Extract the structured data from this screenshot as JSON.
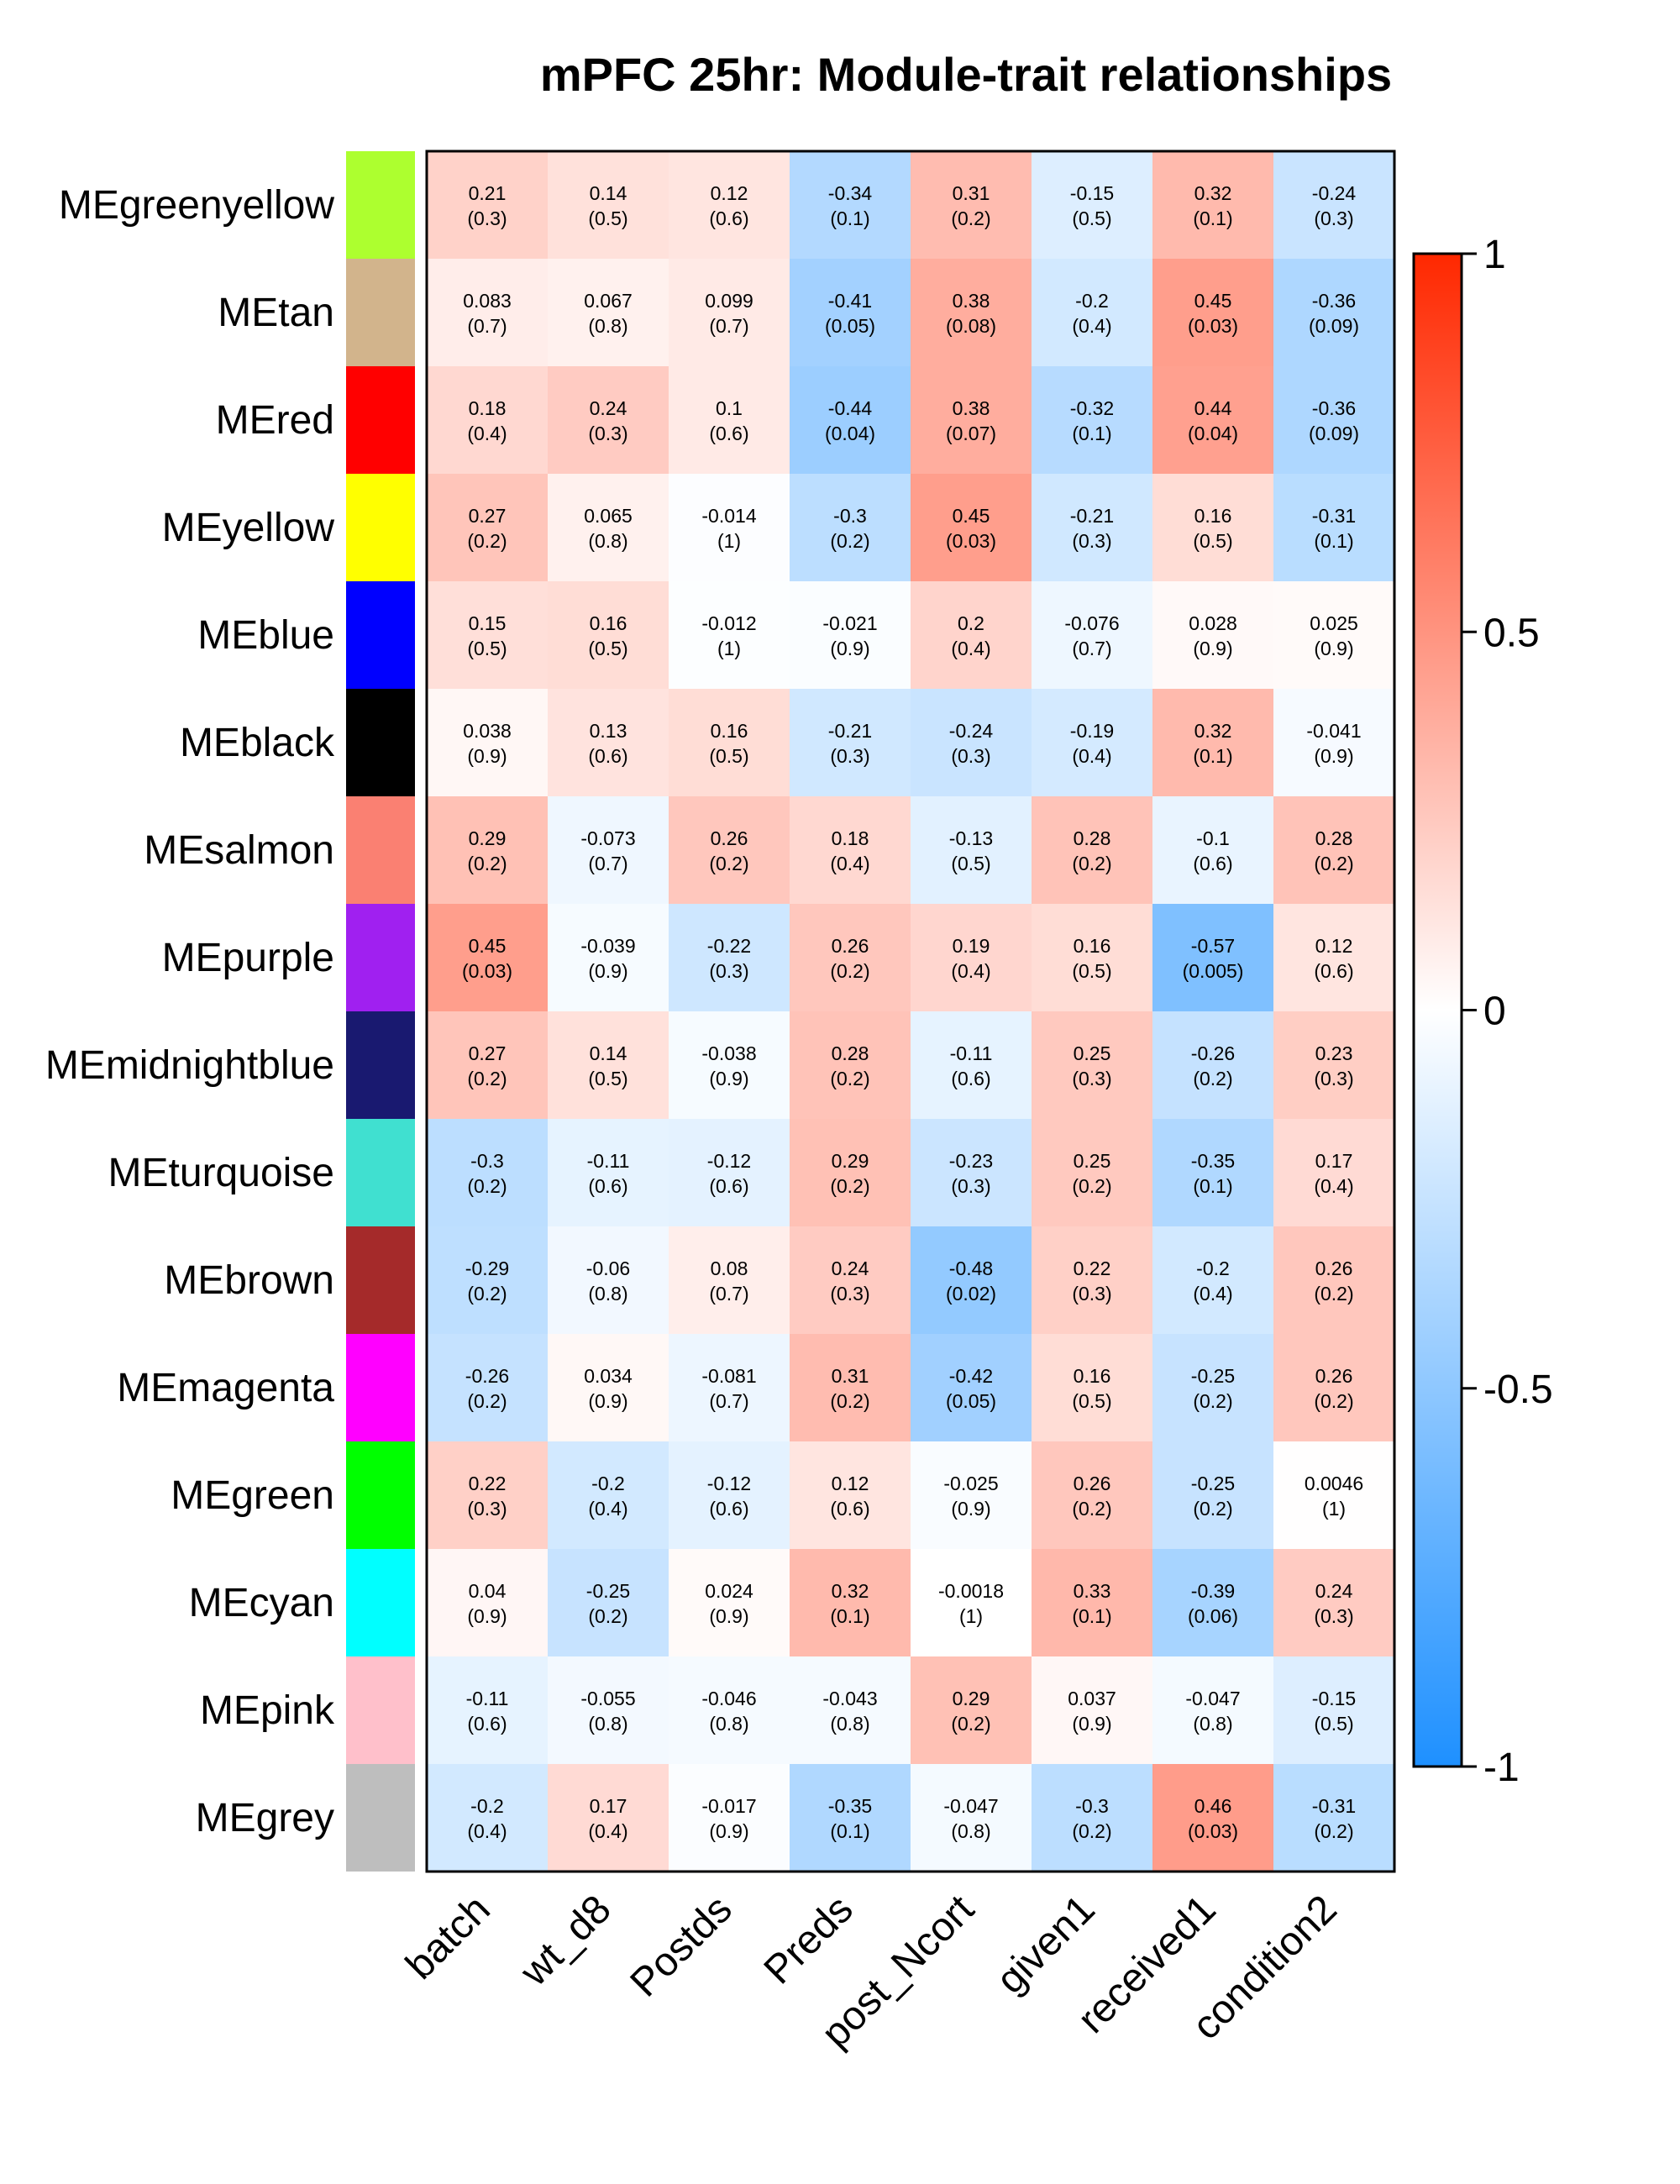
{
  "chart_data": {
    "type": "heatmap",
    "title": "mPFC 25hr: Module-trait relationships",
    "rows": [
      {
        "label": "MEgreenyellow",
        "color": "#ADFF2F"
      },
      {
        "label": "MEtan",
        "color": "#D2B48C"
      },
      {
        "label": "MEred",
        "color": "#FF0000"
      },
      {
        "label": "MEyellow",
        "color": "#FFFF00"
      },
      {
        "label": "MEblue",
        "color": "#0000FF"
      },
      {
        "label": "MEblack",
        "color": "#000000"
      },
      {
        "label": "MEsalmon",
        "color": "#FA8072"
      },
      {
        "label": "MEpurple",
        "color": "#A020F0"
      },
      {
        "label": "MEmidnightblue",
        "color": "#191970"
      },
      {
        "label": "MEturquoise",
        "color": "#40E0D0"
      },
      {
        "label": "MEbrown",
        "color": "#A52A2A"
      },
      {
        "label": "MEmagenta",
        "color": "#FF00FF"
      },
      {
        "label": "MEgreen",
        "color": "#00FF00"
      },
      {
        "label": "MEcyan",
        "color": "#00FFFF"
      },
      {
        "label": "MEpink",
        "color": "#FFC0CB"
      },
      {
        "label": "MEgrey",
        "color": "#BEBEBE"
      }
    ],
    "columns": [
      "batch",
      "wt_d8",
      "Postds",
      "Preds",
      "post_Ncort",
      "given1",
      "received1",
      "condition2"
    ],
    "cells": [
      [
        [
          "0.21",
          "(0.3)"
        ],
        [
          "0.14",
          "(0.5)"
        ],
        [
          "0.12",
          "(0.6)"
        ],
        [
          "-0.34",
          "(0.1)"
        ],
        [
          "0.31",
          "(0.2)"
        ],
        [
          "-0.15",
          "(0.5)"
        ],
        [
          "0.32",
          "(0.1)"
        ],
        [
          "-0.24",
          "(0.3)"
        ]
      ],
      [
        [
          "0.083",
          "(0.7)"
        ],
        [
          "0.067",
          "(0.8)"
        ],
        [
          "0.099",
          "(0.7)"
        ],
        [
          "-0.41",
          "(0.05)"
        ],
        [
          "0.38",
          "(0.08)"
        ],
        [
          "-0.2",
          "(0.4)"
        ],
        [
          "0.45",
          "(0.03)"
        ],
        [
          "-0.36",
          "(0.09)"
        ]
      ],
      [
        [
          "0.18",
          "(0.4)"
        ],
        [
          "0.24",
          "(0.3)"
        ],
        [
          "0.1",
          "(0.6)"
        ],
        [
          "-0.44",
          "(0.04)"
        ],
        [
          "0.38",
          "(0.07)"
        ],
        [
          "-0.32",
          "(0.1)"
        ],
        [
          "0.44",
          "(0.04)"
        ],
        [
          "-0.36",
          "(0.09)"
        ]
      ],
      [
        [
          "0.27",
          "(0.2)"
        ],
        [
          "0.065",
          "(0.8)"
        ],
        [
          "-0.014",
          "(1)"
        ],
        [
          "-0.3",
          "(0.2)"
        ],
        [
          "0.45",
          "(0.03)"
        ],
        [
          "-0.21",
          "(0.3)"
        ],
        [
          "0.16",
          "(0.5)"
        ],
        [
          "-0.31",
          "(0.1)"
        ]
      ],
      [
        [
          "0.15",
          "(0.5)"
        ],
        [
          "0.16",
          "(0.5)"
        ],
        [
          "-0.012",
          "(1)"
        ],
        [
          "-0.021",
          "(0.9)"
        ],
        [
          "0.2",
          "(0.4)"
        ],
        [
          "-0.076",
          "(0.7)"
        ],
        [
          "0.028",
          "(0.9)"
        ],
        [
          "0.025",
          "(0.9)"
        ]
      ],
      [
        [
          "0.038",
          "(0.9)"
        ],
        [
          "0.13",
          "(0.6)"
        ],
        [
          "0.16",
          "(0.5)"
        ],
        [
          "-0.21",
          "(0.3)"
        ],
        [
          "-0.24",
          "(0.3)"
        ],
        [
          "-0.19",
          "(0.4)"
        ],
        [
          "0.32",
          "(0.1)"
        ],
        [
          "-0.041",
          "(0.9)"
        ]
      ],
      [
        [
          "0.29",
          "(0.2)"
        ],
        [
          "-0.073",
          "(0.7)"
        ],
        [
          "0.26",
          "(0.2)"
        ],
        [
          "0.18",
          "(0.4)"
        ],
        [
          "-0.13",
          "(0.5)"
        ],
        [
          "0.28",
          "(0.2)"
        ],
        [
          "-0.1",
          "(0.6)"
        ],
        [
          "0.28",
          "(0.2)"
        ]
      ],
      [
        [
          "0.45",
          "(0.03)"
        ],
        [
          "-0.039",
          "(0.9)"
        ],
        [
          "-0.22",
          "(0.3)"
        ],
        [
          "0.26",
          "(0.2)"
        ],
        [
          "0.19",
          "(0.4)"
        ],
        [
          "0.16",
          "(0.5)"
        ],
        [
          "-0.57",
          "(0.005)"
        ],
        [
          "0.12",
          "(0.6)"
        ]
      ],
      [
        [
          "0.27",
          "(0.2)"
        ],
        [
          "0.14",
          "(0.5)"
        ],
        [
          "-0.038",
          "(0.9)"
        ],
        [
          "0.28",
          "(0.2)"
        ],
        [
          "-0.11",
          "(0.6)"
        ],
        [
          "0.25",
          "(0.3)"
        ],
        [
          "-0.26",
          "(0.2)"
        ],
        [
          "0.23",
          "(0.3)"
        ]
      ],
      [
        [
          "-0.3",
          "(0.2)"
        ],
        [
          "-0.11",
          "(0.6)"
        ],
        [
          "-0.12",
          "(0.6)"
        ],
        [
          "0.29",
          "(0.2)"
        ],
        [
          "-0.23",
          "(0.3)"
        ],
        [
          "0.25",
          "(0.2)"
        ],
        [
          "-0.35",
          "(0.1)"
        ],
        [
          "0.17",
          "(0.4)"
        ]
      ],
      [
        [
          "-0.29",
          "(0.2)"
        ],
        [
          "-0.06",
          "(0.8)"
        ],
        [
          "0.08",
          "(0.7)"
        ],
        [
          "0.24",
          "(0.3)"
        ],
        [
          "-0.48",
          "(0.02)"
        ],
        [
          "0.22",
          "(0.3)"
        ],
        [
          "-0.2",
          "(0.4)"
        ],
        [
          "0.26",
          "(0.2)"
        ]
      ],
      [
        [
          "-0.26",
          "(0.2)"
        ],
        [
          "0.034",
          "(0.9)"
        ],
        [
          "-0.081",
          "(0.7)"
        ],
        [
          "0.31",
          "(0.2)"
        ],
        [
          "-0.42",
          "(0.05)"
        ],
        [
          "0.16",
          "(0.5)"
        ],
        [
          "-0.25",
          "(0.2)"
        ],
        [
          "0.26",
          "(0.2)"
        ]
      ],
      [
        [
          "0.22",
          "(0.3)"
        ],
        [
          "-0.2",
          "(0.4)"
        ],
        [
          "-0.12",
          "(0.6)"
        ],
        [
          "0.12",
          "(0.6)"
        ],
        [
          "-0.025",
          "(0.9)"
        ],
        [
          "0.26",
          "(0.2)"
        ],
        [
          "-0.25",
          "(0.2)"
        ],
        [
          "0.0046",
          "(1)"
        ]
      ],
      [
        [
          "0.04",
          "(0.9)"
        ],
        [
          "-0.25",
          "(0.2)"
        ],
        [
          "0.024",
          "(0.9)"
        ],
        [
          "0.32",
          "(0.1)"
        ],
        [
          "-0.0018",
          "(1)"
        ],
        [
          "0.33",
          "(0.1)"
        ],
        [
          "-0.39",
          "(0.06)"
        ],
        [
          "0.24",
          "(0.3)"
        ]
      ],
      [
        [
          "-0.11",
          "(0.6)"
        ],
        [
          "-0.055",
          "(0.8)"
        ],
        [
          "-0.046",
          "(0.8)"
        ],
        [
          "-0.043",
          "(0.8)"
        ],
        [
          "0.29",
          "(0.2)"
        ],
        [
          "0.037",
          "(0.9)"
        ],
        [
          "-0.047",
          "(0.8)"
        ],
        [
          "-0.15",
          "(0.5)"
        ]
      ],
      [
        [
          "-0.2",
          "(0.4)"
        ],
        [
          "0.17",
          "(0.4)"
        ],
        [
          "-0.017",
          "(0.9)"
        ],
        [
          "-0.35",
          "(0.1)"
        ],
        [
          "-0.047",
          "(0.8)"
        ],
        [
          "-0.3",
          "(0.2)"
        ],
        [
          "0.46",
          "(0.03)"
        ],
        [
          "-0.31",
          "(0.2)"
        ]
      ]
    ],
    "colorscale": {
      "min": -1,
      "max": 1,
      "low_color": "#1E90FF",
      "mid_color": "#FFFFFF",
      "high_color": "#FF2800",
      "ticks": [
        "1",
        "0.5",
        "0",
        "-0.5",
        "-1"
      ]
    }
  }
}
